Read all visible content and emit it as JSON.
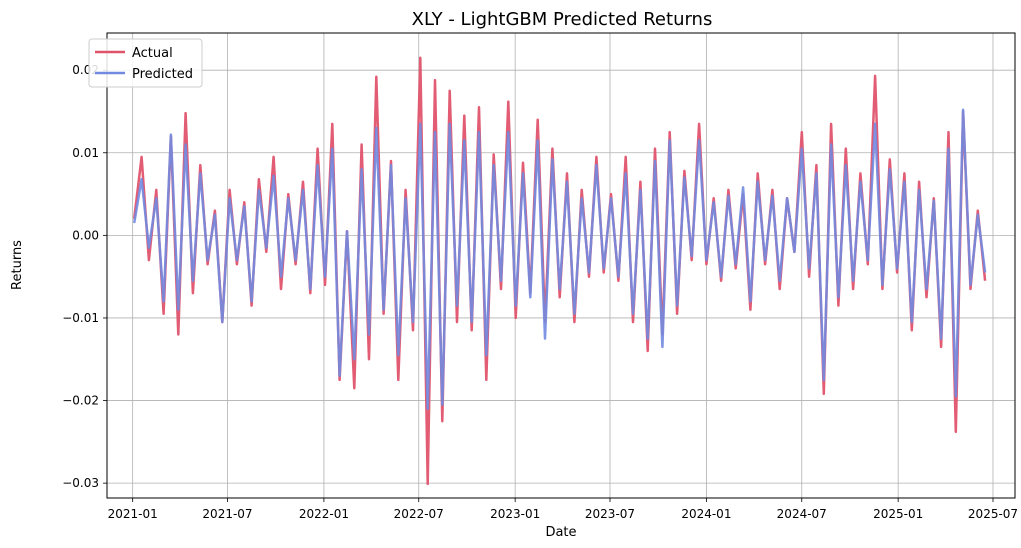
{
  "chart_data": {
    "type": "line",
    "title": "XLY - LightGBM Predicted Returns",
    "xlabel": "Date",
    "ylabel": "Returns",
    "grid": true,
    "legend_position": "top-left",
    "x_range": [
      "2020-11-13",
      "2025-08-12"
    ],
    "ylim": [
      -0.0318,
      0.0245
    ],
    "x_ticks": [
      "2021-01",
      "2021-07",
      "2022-01",
      "2022-07",
      "2023-01",
      "2023-07",
      "2024-01",
      "2024-07",
      "2025-01",
      "2025-07"
    ],
    "y_ticks": [
      "0.02",
      "0.01",
      "0.00",
      "−0.01",
      "−0.02",
      "−0.03"
    ],
    "y_tick_values": [
      0.02,
      0.01,
      0.0,
      -0.01,
      -0.02,
      -0.03
    ],
    "x": [
      "2021-01-04",
      "2021-01-18",
      "2021-02-01",
      "2021-02-15",
      "2021-03-01",
      "2021-03-15",
      "2021-03-29",
      "2021-04-12",
      "2021-04-26",
      "2021-05-10",
      "2021-05-24",
      "2021-06-07",
      "2021-06-21",
      "2021-07-05",
      "2021-07-19",
      "2021-08-02",
      "2021-08-16",
      "2021-08-30",
      "2021-09-13",
      "2021-09-27",
      "2021-10-11",
      "2021-10-25",
      "2021-11-08",
      "2021-11-22",
      "2021-12-06",
      "2021-12-20",
      "2022-01-03",
      "2022-01-17",
      "2022-01-31",
      "2022-02-14",
      "2022-02-28",
      "2022-03-14",
      "2022-03-28",
      "2022-04-11",
      "2022-04-25",
      "2022-05-09",
      "2022-05-23",
      "2022-06-06",
      "2022-06-20",
      "2022-07-04",
      "2022-07-18",
      "2022-08-01",
      "2022-08-15",
      "2022-08-29",
      "2022-09-12",
      "2022-09-26",
      "2022-10-10",
      "2022-10-24",
      "2022-11-07",
      "2022-11-21",
      "2022-12-05",
      "2022-12-19",
      "2023-01-02",
      "2023-01-16",
      "2023-01-30",
      "2023-02-13",
      "2023-02-27",
      "2023-03-13",
      "2023-03-27",
      "2023-04-10",
      "2023-04-24",
      "2023-05-08",
      "2023-05-22",
      "2023-06-05",
      "2023-06-19",
      "2023-07-03",
      "2023-07-17",
      "2023-07-31",
      "2023-08-14",
      "2023-08-28",
      "2023-09-11",
      "2023-09-25",
      "2023-10-09",
      "2023-10-23",
      "2023-11-06",
      "2023-11-20",
      "2023-12-04",
      "2023-12-18",
      "2024-01-01",
      "2024-01-15",
      "2024-01-29",
      "2024-02-12",
      "2024-02-26",
      "2024-03-11",
      "2024-03-25",
      "2024-04-08",
      "2024-04-22",
      "2024-05-06",
      "2024-05-20",
      "2024-06-03",
      "2024-06-17",
      "2024-07-01",
      "2024-07-15",
      "2024-07-29",
      "2024-08-12",
      "2024-08-26",
      "2024-09-09",
      "2024-09-23",
      "2024-10-07",
      "2024-10-21",
      "2024-11-04",
      "2024-11-18",
      "2024-12-02",
      "2024-12-16",
      "2024-12-30",
      "2025-01-13",
      "2025-01-27",
      "2025-02-10",
      "2025-02-24",
      "2025-03-10",
      "2025-03-24",
      "2025-04-07",
      "2025-04-21",
      "2025-05-05",
      "2025-05-19",
      "2025-06-02",
      "2025-06-16"
    ],
    "series": [
      {
        "name": "Actual",
        "color": "#e0536d",
        "values": [
          0.002,
          0.0095,
          -0.003,
          0.0055,
          -0.0095,
          0.012,
          -0.012,
          0.0148,
          -0.007,
          0.0085,
          -0.0035,
          0.003,
          -0.0105,
          0.0055,
          -0.0035,
          0.004,
          -0.0085,
          0.0068,
          -0.002,
          0.0095,
          -0.0065,
          0.005,
          -0.0035,
          0.0065,
          -0.007,
          0.0105,
          -0.006,
          0.0135,
          -0.0175,
          0.0005,
          -0.0185,
          0.011,
          -0.015,
          0.0192,
          -0.0095,
          0.009,
          -0.0175,
          0.0055,
          -0.0115,
          0.0215,
          -0.0301,
          0.0188,
          -0.0225,
          0.0175,
          -0.0105,
          0.0145,
          -0.0115,
          0.0155,
          -0.0175,
          0.0098,
          -0.0065,
          0.0162,
          -0.01,
          0.0088,
          -0.007,
          0.014,
          -0.0105,
          0.0105,
          -0.0075,
          0.0075,
          -0.0105,
          0.0055,
          -0.005,
          0.0095,
          -0.0045,
          0.005,
          -0.0055,
          0.0095,
          -0.0105,
          0.0065,
          -0.014,
          0.0105,
          -0.012,
          0.0125,
          -0.0095,
          0.0078,
          -0.003,
          0.0135,
          -0.0035,
          0.0045,
          -0.0055,
          0.0055,
          -0.004,
          0.005,
          -0.009,
          0.0075,
          -0.0035,
          0.0055,
          -0.0065,
          0.0045,
          -0.002,
          0.0125,
          -0.005,
          0.0085,
          -0.0192,
          0.0135,
          -0.0085,
          0.0105,
          -0.0065,
          0.0075,
          -0.0035,
          0.0193,
          -0.0065,
          0.0092,
          -0.0045,
          0.0075,
          -0.0115,
          0.0065,
          -0.0075,
          0.0045,
          -0.0135,
          0.0125,
          -0.0238,
          0.015,
          -0.0065,
          0.003,
          -0.0055
        ]
      },
      {
        "name": "Predicted",
        "color": "#7289e0",
        "values": [
          0.0015,
          0.0068,
          -0.0015,
          0.0045,
          -0.008,
          0.0122,
          -0.009,
          0.011,
          -0.0055,
          0.0075,
          -0.003,
          0.0025,
          -0.0105,
          0.0045,
          -0.003,
          0.0035,
          -0.008,
          0.0055,
          -0.0015,
          0.0072,
          -0.005,
          0.0045,
          -0.003,
          0.0055,
          -0.0065,
          0.0085,
          -0.005,
          0.0105,
          -0.017,
          0.0005,
          -0.015,
          0.008,
          -0.012,
          0.013,
          -0.009,
          0.0085,
          -0.0145,
          0.0045,
          -0.0105,
          0.0135,
          -0.021,
          0.0125,
          -0.0205,
          0.0135,
          -0.0085,
          0.0115,
          -0.0105,
          0.0125,
          -0.0145,
          0.0085,
          -0.0055,
          0.0125,
          -0.0085,
          0.0075,
          -0.0075,
          0.0115,
          -0.0125,
          0.0092,
          -0.0065,
          0.0065,
          -0.0095,
          0.0045,
          -0.0045,
          0.0085,
          -0.004,
          0.0045,
          -0.005,
          0.0075,
          -0.0095,
          0.0055,
          -0.0125,
          0.009,
          -0.0135,
          0.0115,
          -0.0085,
          0.007,
          -0.0025,
          0.0115,
          -0.003,
          0.004,
          -0.005,
          0.0048,
          -0.0035,
          0.0058,
          -0.008,
          0.0065,
          -0.003,
          0.0048,
          -0.0055,
          0.0045,
          -0.002,
          0.0105,
          -0.004,
          0.0075,
          -0.0175,
          0.011,
          -0.0075,
          0.0085,
          -0.0055,
          0.0065,
          -0.003,
          0.0135,
          -0.006,
          0.008,
          -0.004,
          0.0065,
          -0.0105,
          0.0055,
          -0.0065,
          0.0042,
          -0.0125,
          0.0105,
          -0.0195,
          0.0152,
          -0.006,
          0.0025,
          -0.0045
        ]
      }
    ]
  }
}
